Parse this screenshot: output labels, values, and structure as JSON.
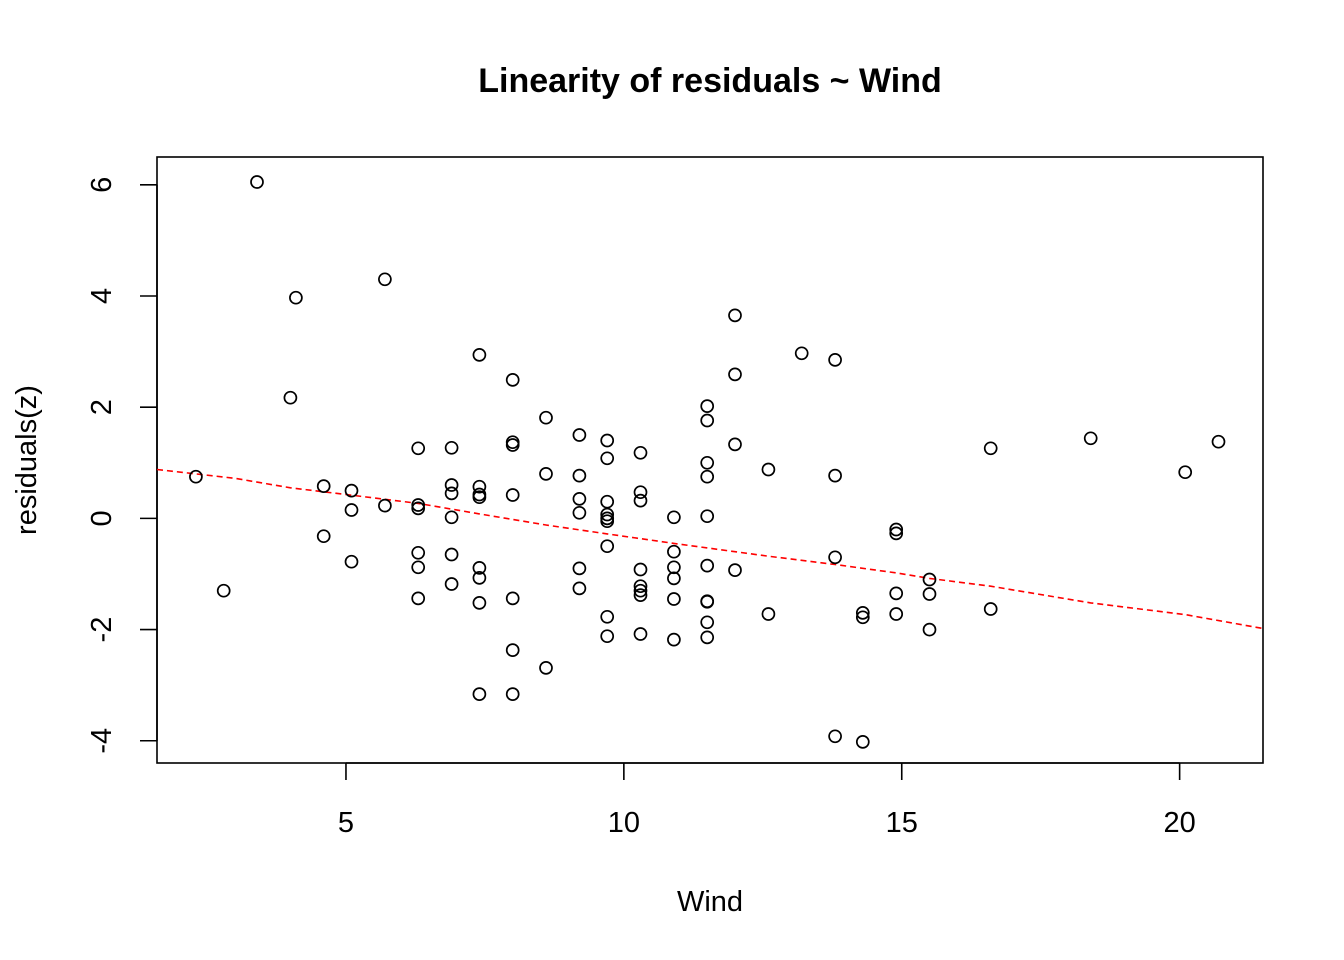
{
  "chart_data": {
    "type": "scatter",
    "title": "Linearity of residuals ~ Wind",
    "xlabel": "Wind",
    "ylabel": "residuals(z)",
    "xlim": [
      1.6,
      21.5
    ],
    "ylim": [
      -4.4,
      6.5
    ],
    "xticks": [
      5,
      10,
      15,
      20
    ],
    "yticks": [
      -4,
      -2,
      0,
      2,
      4,
      6
    ],
    "grid": false,
    "colors": {
      "points": "#000000",
      "smooth": "#ff0000"
    },
    "points": [
      [
        2.3,
        0.75
      ],
      [
        2.8,
        -1.3
      ],
      [
        3.4,
        6.05
      ],
      [
        4.0,
        2.17
      ],
      [
        4.1,
        3.97
      ],
      [
        4.6,
        0.58
      ],
      [
        4.6,
        -0.32
      ],
      [
        5.1,
        0.5
      ],
      [
        5.1,
        0.15
      ],
      [
        5.1,
        -0.78
      ],
      [
        5.7,
        4.3
      ],
      [
        5.7,
        0.23
      ],
      [
        6.3,
        1.26
      ],
      [
        6.3,
        0.24
      ],
      [
        6.3,
        0.18
      ],
      [
        6.3,
        -0.62
      ],
      [
        6.3,
        -0.88
      ],
      [
        6.3,
        -1.44
      ],
      [
        6.9,
        1.27
      ],
      [
        6.9,
        0.6
      ],
      [
        6.9,
        0.45
      ],
      [
        6.9,
        0.02
      ],
      [
        6.9,
        -0.65
      ],
      [
        6.9,
        -1.18
      ],
      [
        7.4,
        2.94
      ],
      [
        7.4,
        0.57
      ],
      [
        7.4,
        0.43
      ],
      [
        7.4,
        0.38
      ],
      [
        7.4,
        -0.89
      ],
      [
        7.4,
        -1.07
      ],
      [
        7.4,
        -1.52
      ],
      [
        7.4,
        -3.16
      ],
      [
        8.0,
        2.49
      ],
      [
        8.0,
        1.37
      ],
      [
        8.0,
        1.32
      ],
      [
        8.0,
        0.42
      ],
      [
        8.0,
        -1.44
      ],
      [
        8.0,
        -2.37
      ],
      [
        8.0,
        -3.16
      ],
      [
        8.6,
        1.81
      ],
      [
        8.6,
        0.8
      ],
      [
        8.6,
        -2.69
      ],
      [
        9.2,
        1.5
      ],
      [
        9.2,
        0.77
      ],
      [
        9.2,
        0.35
      ],
      [
        9.2,
        0.1
      ],
      [
        9.2,
        -0.9
      ],
      [
        9.2,
        -1.26
      ],
      [
        9.7,
        1.4
      ],
      [
        9.7,
        1.08
      ],
      [
        9.7,
        0.3
      ],
      [
        9.7,
        0.07
      ],
      [
        9.7,
        0.0
      ],
      [
        9.7,
        -0.05
      ],
      [
        9.7,
        -0.5
      ],
      [
        9.7,
        -1.77
      ],
      [
        9.7,
        -2.12
      ],
      [
        10.3,
        1.18
      ],
      [
        10.3,
        0.47
      ],
      [
        10.3,
        0.32
      ],
      [
        10.3,
        -0.92
      ],
      [
        10.3,
        -1.22
      ],
      [
        10.3,
        -1.3
      ],
      [
        10.3,
        -1.38
      ],
      [
        10.3,
        -2.08
      ],
      [
        10.9,
        0.02
      ],
      [
        10.9,
        -0.6
      ],
      [
        10.9,
        -0.88
      ],
      [
        10.9,
        -1.08
      ],
      [
        10.9,
        -1.45
      ],
      [
        10.9,
        -2.18
      ],
      [
        11.5,
        2.02
      ],
      [
        11.5,
        1.76
      ],
      [
        11.5,
        1.0
      ],
      [
        11.5,
        0.75
      ],
      [
        11.5,
        0.04
      ],
      [
        11.5,
        -0.85
      ],
      [
        11.5,
        -1.49
      ],
      [
        11.5,
        -1.5
      ],
      [
        11.5,
        -1.87
      ],
      [
        11.5,
        -2.14
      ],
      [
        12.0,
        3.65
      ],
      [
        12.0,
        2.59
      ],
      [
        12.0,
        1.33
      ],
      [
        12.0,
        -0.93
      ],
      [
        12.6,
        0.88
      ],
      [
        12.6,
        -1.72
      ],
      [
        13.2,
        2.97
      ],
      [
        13.8,
        2.85
      ],
      [
        13.8,
        0.77
      ],
      [
        13.8,
        -0.7
      ],
      [
        13.8,
        -3.92
      ],
      [
        14.3,
        -1.7
      ],
      [
        14.3,
        -1.78
      ],
      [
        14.3,
        -4.02
      ],
      [
        14.9,
        -0.2
      ],
      [
        14.9,
        -0.27
      ],
      [
        14.9,
        -1.35
      ],
      [
        14.9,
        -1.72
      ],
      [
        15.5,
        -1.1
      ],
      [
        15.5,
        -1.36
      ],
      [
        15.5,
        -2.0
      ],
      [
        16.6,
        1.26
      ],
      [
        16.6,
        -1.63
      ],
      [
        18.4,
        1.44
      ],
      [
        20.1,
        0.83
      ],
      [
        20.7,
        1.38
      ]
    ],
    "smooth": [
      [
        1.6,
        0.88
      ],
      [
        3.0,
        0.72
      ],
      [
        4.0,
        0.55
      ],
      [
        5.0,
        0.43
      ],
      [
        6.3,
        0.27
      ],
      [
        7.4,
        0.08
      ],
      [
        8.6,
        -0.12
      ],
      [
        9.7,
        -0.28
      ],
      [
        10.9,
        -0.45
      ],
      [
        12.0,
        -0.6
      ],
      [
        12.6,
        -0.68
      ],
      [
        13.8,
        -0.83
      ],
      [
        14.9,
        -0.98
      ],
      [
        15.5,
        -1.08
      ],
      [
        16.6,
        -1.22
      ],
      [
        18.4,
        -1.52
      ],
      [
        20.1,
        -1.73
      ],
      [
        21.5,
        -1.98
      ]
    ]
  }
}
